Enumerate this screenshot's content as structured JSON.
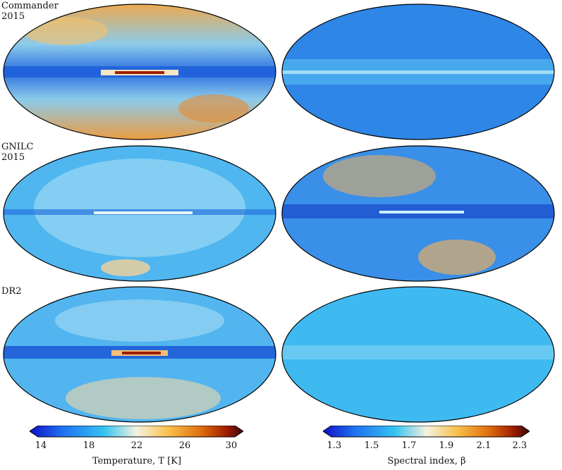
{
  "rows": [
    {
      "label": "Commander\n2015"
    },
    {
      "label": "GNILC\n2015"
    },
    {
      "label": "DR2"
    }
  ],
  "colorbars": {
    "temperature": {
      "title": "Temperature, T [K]",
      "ticks": [
        "14",
        "18",
        "22",
        "26",
        "30"
      ],
      "stops": [
        "#1010c8",
        "#1f6ff0",
        "#36c4f0",
        "#f4f2e2",
        "#f9c04a",
        "#e07010",
        "#a01e00",
        "#3a0508"
      ]
    },
    "beta": {
      "title": "Spectral index, β",
      "ticks": [
        "1.3",
        "1.5",
        "1.7",
        "1.9",
        "2.1",
        "2.3"
      ],
      "stops": [
        "#1010c8",
        "#1f6ff0",
        "#36c4f0",
        "#f4f2e2",
        "#f9c04a",
        "#e07010",
        "#a01e00",
        "#3a0508"
      ]
    }
  }
}
